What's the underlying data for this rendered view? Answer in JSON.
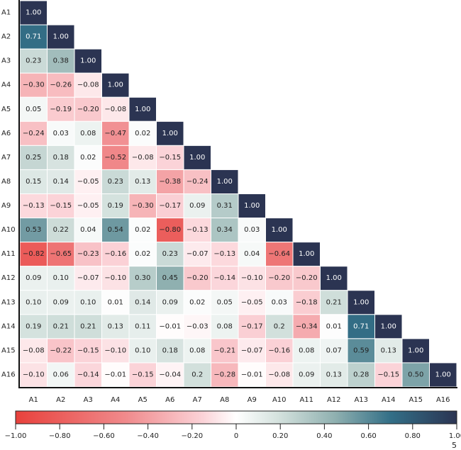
{
  "chart_data": {
    "type": "heatmap",
    "title": "",
    "labels": [
      "A1",
      "A2",
      "A3",
      "A4",
      "A5",
      "A6",
      "A7",
      "A8",
      "A9",
      "A10",
      "A11",
      "A12",
      "A13",
      "A14",
      "A15",
      "A16"
    ],
    "lower_triangle": true,
    "value_format": "2 decimals",
    "matrix": [
      [
        "1.00"
      ],
      [
        "0.71",
        "1.00"
      ],
      [
        "0.23",
        "0.38",
        "1.00"
      ],
      [
        "-0.30",
        "-0.26",
        "-0.08",
        "1.00"
      ],
      [
        "0.05",
        "-0.19",
        "-0.20",
        "-0.08",
        "1.00"
      ],
      [
        "-0.24",
        "0.03",
        "0.08",
        "-0.47",
        "0.02",
        "1.00"
      ],
      [
        "0.25",
        "0.18",
        "0.02",
        "-0.52",
        "-0.08",
        "-0.15",
        "1.00"
      ],
      [
        "0.15",
        "0.14",
        "-0.05",
        "0.23",
        "0.13",
        "-0.38",
        "-0.24",
        "1.00"
      ],
      [
        "-0.13",
        "-0.15",
        "-0.05",
        "0.19",
        "-0.30",
        "-0.17",
        "0.09",
        "0.31",
        "1.00"
      ],
      [
        "0.53",
        "0.22",
        "0.04",
        "0.54",
        "0.02",
        "-0.80",
        "-0.13",
        "0.34",
        "0.03",
        "1.00"
      ],
      [
        "-0.82",
        "-0.65",
        "-0.23",
        "-0.16",
        "0.02",
        "0.23",
        "-0.07",
        "-0.13",
        "0.04",
        "-0.64",
        "1.00"
      ],
      [
        "0.09",
        "0.10",
        "-0.07",
        "-0.10",
        "0.30",
        "0.45",
        "-0.20",
        "-0.14",
        "-0.10",
        "-0.20",
        "-0.20",
        "1.00"
      ],
      [
        "0.10",
        "0.09",
        "0.10",
        "0.01",
        "0.14",
        "0.09",
        "0.02",
        "0.05",
        "-0.05",
        "0.03",
        "-0.18",
        "0.21",
        "1.00"
      ],
      [
        "0.19",
        "0.21",
        "0.21",
        "0.13",
        "0.11",
        "-0.01",
        "-0.03",
        "0.08",
        "-0.17",
        "0.2",
        "-0.34",
        "0.01",
        "0.71",
        "1.00"
      ],
      [
        "-0.08",
        "-0.22",
        "-0.15",
        "-0.10",
        "0.10",
        "0.18",
        "0.08",
        "-0.21",
        "-0.07",
        "-0.16",
        "0.08",
        "0.07",
        "0.59",
        "0.13",
        "1.00"
      ],
      [
        "-0.10",
        "0.06",
        "-0.14",
        "-0.01",
        "-0.15",
        "-0.04",
        "0.2",
        "-0.28",
        "-0.01",
        "-0.08",
        "0.09",
        "0.13",
        "0.28",
        "-0.15",
        "0.50",
        "1.00"
      ]
    ],
    "colorbar": {
      "range": [
        -1.0,
        1.0
      ],
      "orientation": "horizontal",
      "placement": "bottom",
      "ticks": [
        "-1.00",
        "-0.80",
        "-0.60",
        "-0.40",
        "-0.20",
        "0",
        "0.20",
        "0.40",
        "0.60",
        "0.80",
        "1.00"
      ],
      "tick_values": [
        -1.0,
        -0.8,
        -0.6,
        -0.4,
        -0.2,
        0,
        0.2,
        0.4,
        0.6,
        0.8,
        1.0
      ],
      "stops": [
        {
          "value": -1.0,
          "color": "#e8413c"
        },
        {
          "value": -0.5,
          "color": "#f08a8c"
        },
        {
          "value": -0.15,
          "color": "#fbd3d8"
        },
        {
          "value": 0.0,
          "color": "#ffffff"
        },
        {
          "value": 0.2,
          "color": "#d2e0dc"
        },
        {
          "value": 0.45,
          "color": "#8fb0b0"
        },
        {
          "value": 0.7,
          "color": "#336f87"
        },
        {
          "value": 1.0,
          "color": "#2b3452"
        }
      ]
    },
    "footnote": "5"
  }
}
